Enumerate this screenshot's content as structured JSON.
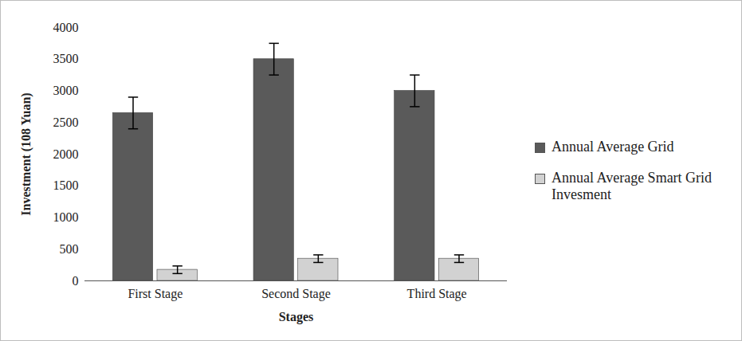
{
  "chart_data": {
    "type": "bar",
    "categories": [
      "First Stage",
      "Second Stage",
      "Third Stage"
    ],
    "x_label": "Stages",
    "y_label": "Investment (108 Yuan)",
    "series": [
      {
        "name": "Annual Average Grid",
        "color": "#5a5a5a",
        "values": [
          2650,
          3500,
          3000
        ],
        "errors": [
          250,
          250,
          250
        ]
      },
      {
        "name": "Annual Average Smart Grid Invesment",
        "color": "#d2d2d2",
        "values": [
          175,
          350,
          350
        ],
        "errors": [
          60,
          60,
          60
        ]
      }
    ],
    "ylim": [
      0,
      4000
    ],
    "yticks": [
      0,
      500,
      1000,
      1500,
      2000,
      2500,
      3000,
      3500,
      4000
    ],
    "grid": false,
    "legend": "right"
  }
}
